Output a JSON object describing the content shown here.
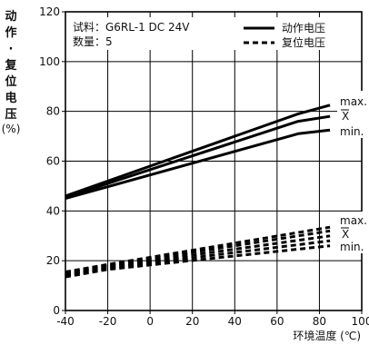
{
  "chart_data": {
    "type": "line",
    "title": "",
    "xlabel": "环境温度 (℃)",
    "ylabel_chars": [
      "动",
      "作",
      "·",
      "复",
      "位",
      "电",
      "压"
    ],
    "ylabel_unit": "(%)",
    "xlim": [
      -40,
      100
    ],
    "ylim": [
      0,
      120
    ],
    "x_ticks": [
      "-40",
      "-20",
      "0",
      "20",
      "40",
      "60",
      "80",
      "100"
    ],
    "y_ticks": [
      "0",
      "20",
      "40",
      "60",
      "80",
      "100",
      "120"
    ],
    "grid": true,
    "info_lines": [
      "试料：G6RL-1 DC 24V",
      "数量：5"
    ],
    "legend": [
      {
        "label": "动作电压",
        "style": "solid"
      },
      {
        "label": "复位电压",
        "style": "dashed"
      }
    ],
    "series_labels": {
      "operate": [
        "max.",
        "X",
        "min."
      ],
      "release": [
        "max.",
        "X",
        "min."
      ]
    },
    "series": [
      {
        "group": "operate",
        "style": "solid",
        "x": [
          -40,
          70,
          85
        ],
        "y": [
          46,
          79,
          82.5
        ]
      },
      {
        "group": "operate",
        "style": "solid",
        "x": [
          -40,
          70,
          85
        ],
        "y": [
          45.5,
          76,
          78
        ]
      },
      {
        "group": "operate",
        "style": "solid",
        "x": [
          -40,
          70,
          85
        ],
        "y": [
          45,
          71,
          72.5
        ]
      },
      {
        "group": "release",
        "style": "dashed",
        "x": [
          -40,
          -20,
          85
        ],
        "y": [
          15.5,
          18.5,
          33.5
        ]
      },
      {
        "group": "release",
        "style": "dashed",
        "x": [
          -40,
          -20,
          85
        ],
        "y": [
          15,
          18,
          32
        ]
      },
      {
        "group": "release",
        "style": "dashed",
        "x": [
          -40,
          -20,
          85
        ],
        "y": [
          14.5,
          17.5,
          30
        ]
      },
      {
        "group": "release",
        "style": "dashed",
        "x": [
          -40,
          -20,
          85
        ],
        "y": [
          14,
          17,
          28
        ]
      },
      {
        "group": "release",
        "style": "dashed",
        "x": [
          -40,
          -20,
          85
        ],
        "y": [
          13.5,
          16.5,
          26
        ]
      }
    ]
  }
}
